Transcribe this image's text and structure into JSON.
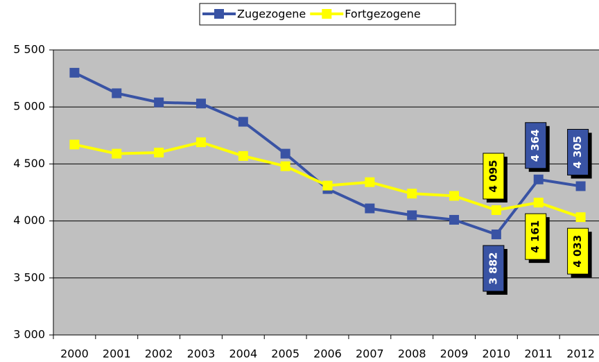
{
  "chart_data": {
    "type": "line",
    "categories": [
      "2000",
      "2001",
      "2002",
      "2003",
      "2004",
      "2005",
      "2006",
      "2007",
      "2008",
      "2009",
      "2010",
      "2011",
      "2012"
    ],
    "series": [
      {
        "name": "Zugezogene",
        "color": "#3953a4",
        "values": [
          5300,
          5120,
          5040,
          5030,
          4870,
          4590,
          4280,
          4110,
          4050,
          4010,
          3882,
          4364,
          4305
        ],
        "value_labels": [
          null,
          null,
          null,
          null,
          null,
          null,
          null,
          null,
          null,
          null,
          "3 882",
          "4 364",
          "4 305"
        ]
      },
      {
        "name": "Fortgezogene",
        "color": "#ffff00",
        "values": [
          4670,
          4590,
          4600,
          4690,
          4570,
          4480,
          4310,
          4340,
          4240,
          4220,
          4095,
          4161,
          4033
        ],
        "value_labels": [
          null,
          null,
          null,
          null,
          null,
          null,
          null,
          null,
          null,
          null,
          "4 095",
          "4 161",
          "4 033"
        ]
      }
    ],
    "ylim": [
      3000,
      5500
    ],
    "yticks": [
      {
        "value": 3000,
        "label": "3 000"
      },
      {
        "value": 3500,
        "label": "3 500"
      },
      {
        "value": 4000,
        "label": "4 000"
      },
      {
        "value": 4500,
        "label": "4 500"
      },
      {
        "value": 5000,
        "label": "5 000"
      },
      {
        "value": 5500,
        "label": "5 500"
      }
    ],
    "grid": true,
    "legend": "top",
    "background": "#c0c0c0"
  }
}
